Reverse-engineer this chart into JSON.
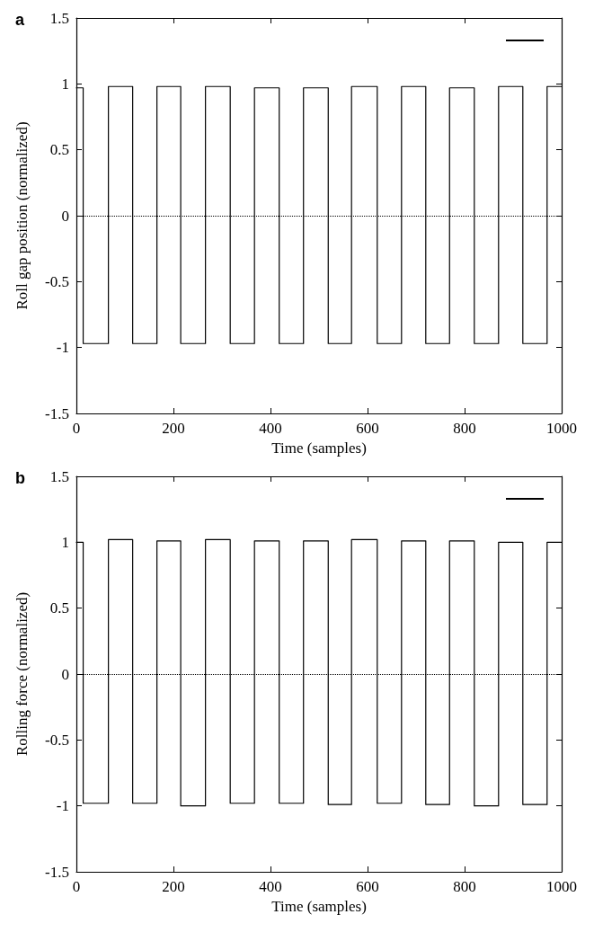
{
  "chart_data": [
    {
      "type": "line",
      "title": "a",
      "xlabel": "Time (samples)",
      "ylabel": "Roll gap position (normalized)",
      "xlim": [
        0,
        1000
      ],
      "xticks": [
        0,
        200,
        400,
        600,
        800,
        1000
      ],
      "ylim": [
        -1.5,
        1.5
      ],
      "yticks": [
        -1.5,
        -1,
        -0.5,
        0,
        0.5,
        1,
        1.5
      ],
      "grid": false,
      "marker": "none",
      "line_style": "solid",
      "ref_lines": [
        {
          "axis": "y",
          "value": 0,
          "line_style": "dotted",
          "color": "#000000"
        }
      ],
      "series": [
        {
          "color": "#000000",
          "x": [
            0,
            14,
            14,
            66,
            66,
            116,
            116,
            166,
            166,
            215,
            215,
            266,
            266,
            317,
            317,
            367,
            367,
            418,
            418,
            468,
            468,
            519,
            519,
            567,
            567,
            620,
            620,
            670,
            670,
            720,
            720,
            769,
            769,
            820,
            820,
            870,
            870,
            920,
            920,
            970,
            970,
            1000
          ],
          "values": [
            0.97,
            0.97,
            -0.97,
            -0.97,
            0.98,
            0.98,
            -0.97,
            -0.97,
            0.98,
            0.98,
            -0.97,
            -0.97,
            0.98,
            0.98,
            -0.97,
            -0.97,
            0.97,
            0.97,
            -0.97,
            -0.97,
            0.97,
            0.97,
            -0.97,
            -0.97,
            0.98,
            0.98,
            -0.97,
            -0.97,
            0.98,
            0.98,
            -0.97,
            -0.97,
            0.97,
            0.97,
            -0.97,
            -0.97,
            0.98,
            0.98,
            -0.97,
            -0.97,
            0.98,
            0.98
          ]
        }
      ]
    },
    {
      "type": "line",
      "title": "b",
      "xlabel": "Time (samples)",
      "ylabel": "Rolling force (normalized)",
      "xlim": [
        0,
        1000
      ],
      "xticks": [
        0,
        200,
        400,
        600,
        800,
        1000
      ],
      "ylim": [
        -1.5,
        1.5
      ],
      "yticks": [
        -1.5,
        -1,
        -0.5,
        0,
        0.5,
        1,
        1.5
      ],
      "grid": false,
      "marker": "none",
      "line_style": "solid",
      "ref_lines": [
        {
          "axis": "y",
          "value": 0,
          "line_style": "dotted",
          "color": "#000000"
        }
      ],
      "series": [
        {
          "color": "#000000",
          "x": [
            0,
            14,
            14,
            66,
            66,
            116,
            116,
            166,
            166,
            215,
            215,
            266,
            266,
            317,
            317,
            367,
            367,
            418,
            418,
            468,
            468,
            519,
            519,
            567,
            567,
            620,
            620,
            670,
            670,
            720,
            720,
            769,
            769,
            820,
            820,
            870,
            870,
            920,
            920,
            970,
            970,
            1000
          ],
          "values": [
            1.0,
            1.0,
            -0.98,
            -0.98,
            1.02,
            1.02,
            -0.98,
            -0.98,
            1.01,
            1.01,
            -1.0,
            -1.0,
            1.02,
            1.02,
            -0.98,
            -0.98,
            1.01,
            1.01,
            -0.98,
            -0.98,
            1.01,
            1.01,
            -0.99,
            -0.99,
            1.02,
            1.02,
            -0.98,
            -0.98,
            1.01,
            1.01,
            -0.99,
            -0.99,
            1.01,
            1.01,
            -1.0,
            -1.0,
            1.0,
            1.0,
            -0.99,
            -0.99,
            1.0,
            1.0
          ]
        }
      ]
    }
  ]
}
